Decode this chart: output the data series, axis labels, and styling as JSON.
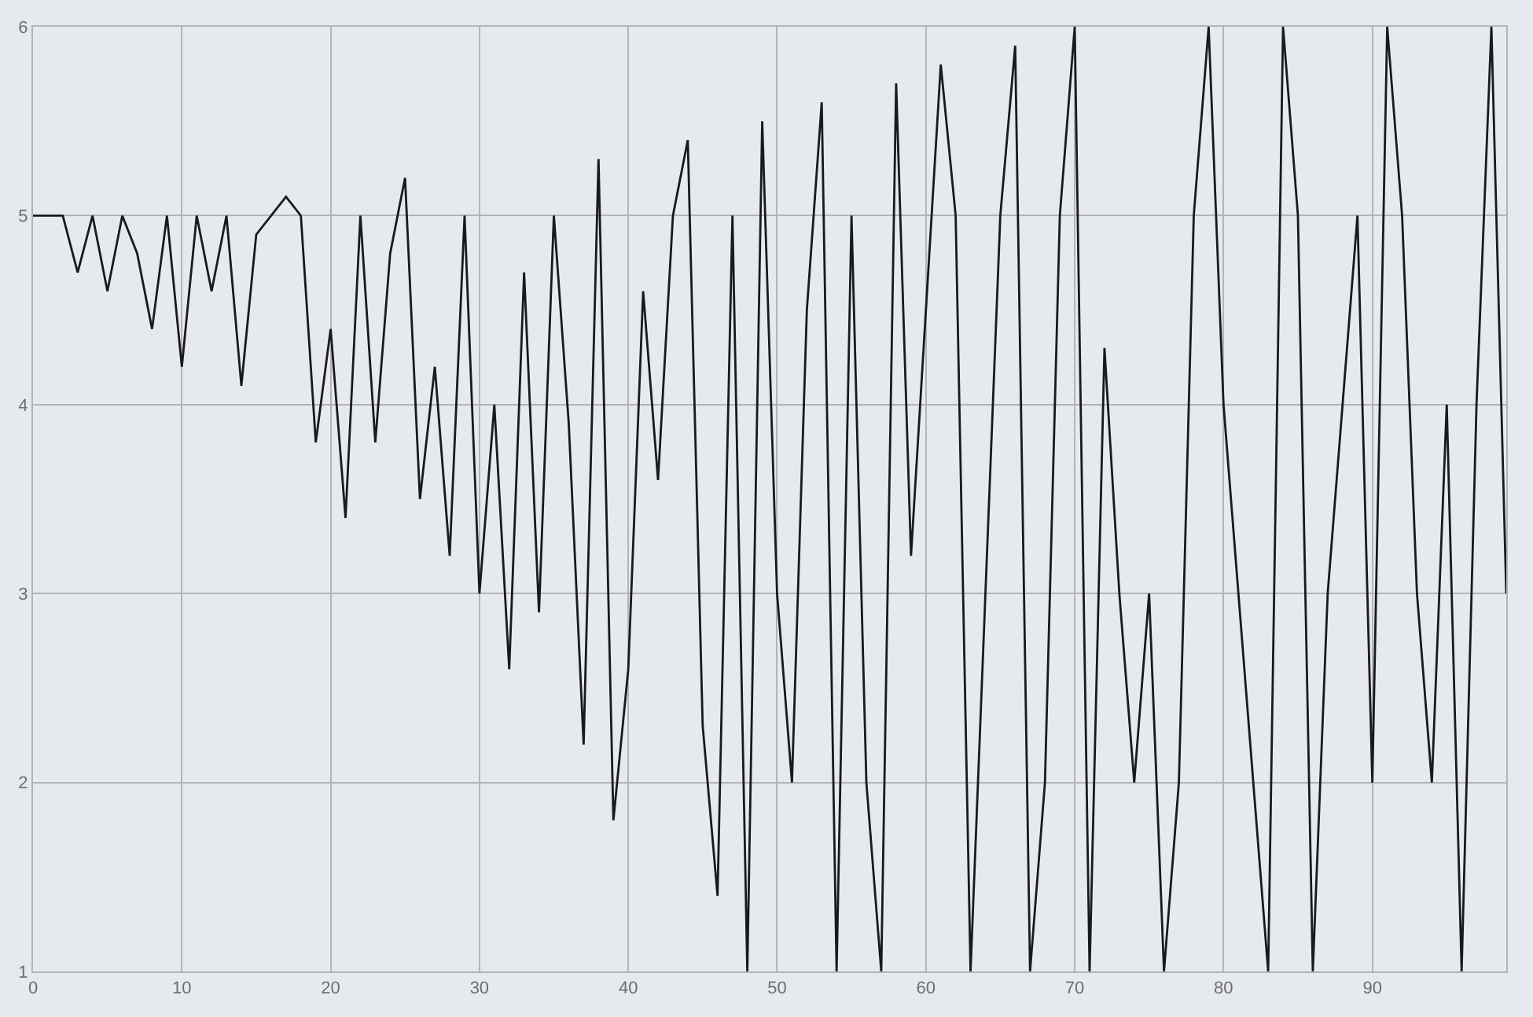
{
  "chart_data": {
    "type": "line",
    "x": [
      0,
      1,
      2,
      3,
      4,
      5,
      6,
      7,
      8,
      9,
      10,
      11,
      12,
      13,
      14,
      15,
      16,
      17,
      18,
      19,
      20,
      21,
      22,
      23,
      24,
      25,
      26,
      27,
      28,
      29,
      30,
      31,
      32,
      33,
      34,
      35,
      36,
      37,
      38,
      39,
      40,
      41,
      42,
      43,
      44,
      45,
      46,
      47,
      48,
      49,
      50,
      51,
      52,
      53,
      54,
      55,
      56,
      57,
      58,
      59,
      60,
      61,
      62,
      63,
      64,
      65,
      66,
      67,
      68,
      69,
      70,
      71,
      72,
      73,
      74,
      75,
      76,
      77,
      78,
      79,
      80,
      81,
      82,
      83,
      84,
      85,
      86,
      87,
      88,
      89,
      90,
      91,
      92,
      93,
      94,
      95,
      96,
      97,
      98,
      99
    ],
    "series": [
      {
        "color": "#1a1a1a",
        "values": [
          5,
          5,
          5,
          4.7,
          5,
          4.6,
          5,
          4.8,
          4.4,
          5,
          4.2,
          5,
          4.6,
          5,
          4.1,
          4.9,
          5,
          5.1,
          5,
          3.8,
          4.4,
          3.4,
          5,
          3.8,
          4.8,
          5.2,
          3.5,
          4.2,
          3.2,
          5,
          3,
          4,
          2.6,
          4.7,
          2.9,
          5,
          3.9,
          2.2,
          5.3,
          1.8,
          2.6,
          4.6,
          3.6,
          5,
          5.4,
          2.3,
          1.4,
          5,
          1,
          5.5,
          3,
          2,
          4.5,
          5.6,
          1,
          5,
          2,
          1,
          5.7,
          3.2,
          4.5,
          5.8,
          5,
          1,
          3,
          5,
          5.9,
          1,
          2,
          5,
          6,
          1,
          4.3,
          3,
          2,
          3,
          1,
          2,
          5,
          6,
          4,
          3,
          2,
          1,
          6,
          5,
          1,
          3,
          4,
          5,
          2,
          6,
          5,
          3,
          2,
          4,
          1,
          4,
          6,
          3
        ]
      }
    ],
    "xlim": [
      0,
      99
    ],
    "ylim": [
      1,
      6
    ],
    "xticks": [
      0,
      10,
      20,
      30,
      40,
      50,
      60,
      70,
      80,
      90
    ],
    "yticks": [
      1,
      2,
      3,
      4,
      5,
      6
    ],
    "grid": true,
    "marker": "none",
    "line_style": "solid"
  }
}
